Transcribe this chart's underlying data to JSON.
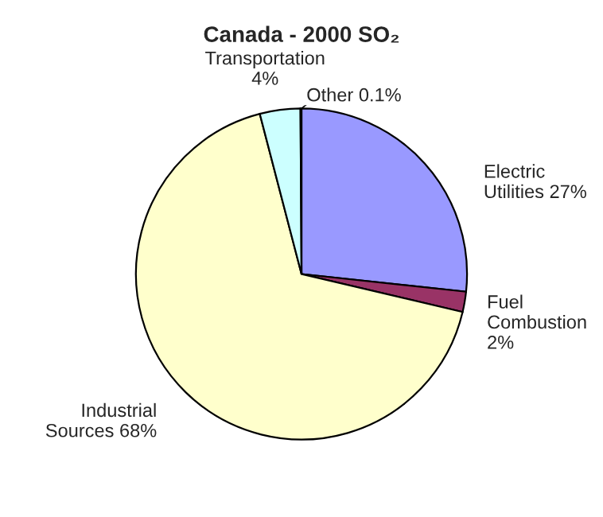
{
  "chart_data": {
    "type": "pie",
    "title": "Canada - 2000 SO₂",
    "categories": [
      "Electric Utilities",
      "Fuel Combustion",
      "Industrial Sources",
      "Transportation",
      "Other"
    ],
    "values": [
      27,
      2,
      68,
      4,
      0.1
    ],
    "value_labels": [
      "27%",
      "2%",
      "68%",
      "4%",
      "0.1%"
    ],
    "colors": [
      "#9999ff",
      "#993366",
      "#ffffcc",
      "#ccffff",
      "#ffffff"
    ],
    "legend": false
  }
}
